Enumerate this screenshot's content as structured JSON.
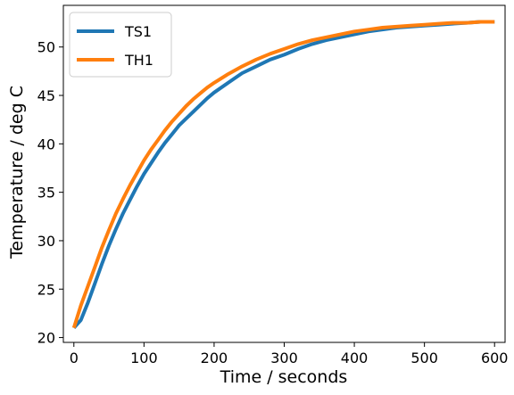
{
  "chart_data": {
    "type": "line",
    "title": "",
    "xlabel": "Time / seconds",
    "ylabel": "Temperature / deg C",
    "xlim": [
      -15,
      615
    ],
    "ylim": [
      19.5,
      54.3
    ],
    "xticks": [
      0,
      100,
      200,
      300,
      400,
      500,
      600
    ],
    "yticks": [
      20,
      25,
      30,
      35,
      40,
      45,
      50
    ],
    "grid": false,
    "legend": "upper left",
    "series": [
      {
        "name": "TS1",
        "color": "#1f77b4",
        "x": [
          0,
          10,
          20,
          30,
          40,
          50,
          60,
          70,
          80,
          90,
          100,
          110,
          120,
          130,
          140,
          150,
          160,
          170,
          180,
          190,
          200,
          220,
          240,
          260,
          280,
          300,
          320,
          340,
          360,
          380,
          400,
          420,
          440,
          460,
          480,
          500,
          520,
          540,
          560,
          580,
          600
        ],
        "y": [
          21.0,
          21.8,
          23.6,
          25.6,
          27.6,
          29.5,
          31.2,
          32.8,
          34.2,
          35.6,
          36.9,
          38.0,
          39.1,
          40.1,
          41.0,
          41.9,
          42.6,
          43.3,
          44.0,
          44.7,
          45.3,
          46.3,
          47.3,
          48.0,
          48.7,
          49.2,
          49.8,
          50.3,
          50.7,
          51.0,
          51.3,
          51.6,
          51.8,
          52.0,
          52.1,
          52.2,
          52.3,
          52.4,
          52.5,
          52.6,
          52.6
        ]
      },
      {
        "name": "TH1",
        "color": "#ff7f0e",
        "x": [
          0,
          10,
          20,
          30,
          40,
          50,
          60,
          70,
          80,
          90,
          100,
          110,
          120,
          130,
          140,
          150,
          160,
          170,
          180,
          190,
          200,
          220,
          240,
          260,
          280,
          300,
          320,
          340,
          360,
          380,
          400,
          420,
          440,
          460,
          480,
          500,
          520,
          540,
          560,
          580,
          600
        ],
        "y": [
          21.0,
          23.3,
          25.3,
          27.3,
          29.3,
          31.1,
          32.8,
          34.3,
          35.7,
          37.0,
          38.3,
          39.4,
          40.4,
          41.4,
          42.3,
          43.1,
          43.9,
          44.6,
          45.2,
          45.8,
          46.3,
          47.2,
          48.0,
          48.7,
          49.3,
          49.8,
          50.3,
          50.7,
          51.0,
          51.3,
          51.6,
          51.8,
          52.0,
          52.1,
          52.2,
          52.3,
          52.4,
          52.5,
          52.5,
          52.6,
          52.6
        ]
      }
    ]
  }
}
